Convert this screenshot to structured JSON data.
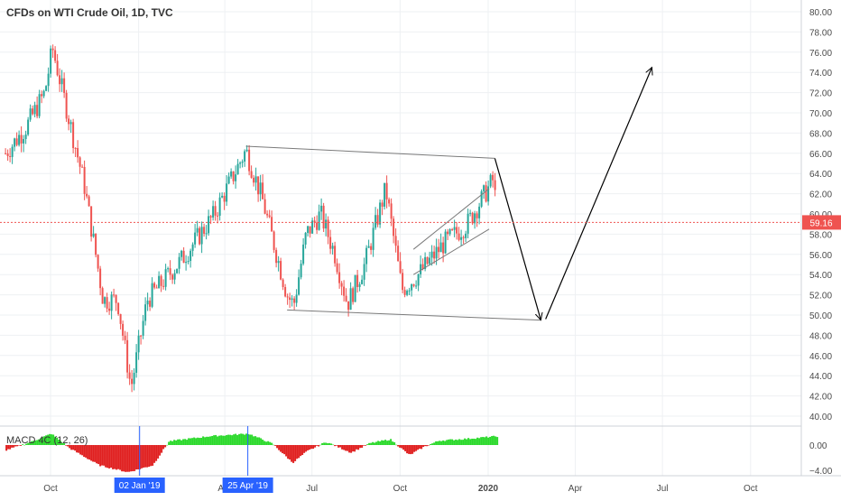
{
  "title": "CFDs on WTI Crude Oil, 1D, TVC",
  "current_price_label": "59.16",
  "colors": {
    "up": "#26a69a",
    "down": "#ef5350",
    "macd_pos": "#2bd92b",
    "macd_neg": "#e02020",
    "price_line": "#ef5350",
    "grid": "#eef0f3",
    "axis_text": "#4a4a4a",
    "marker": "#2962ff",
    "channel": "#7a7a7a",
    "arrow": "#000000"
  },
  "chart_data": {
    "type": "candlestick",
    "y_axis": {
      "min": 40,
      "max": 80,
      "ticks": [
        "80.00",
        "78.00",
        "76.00",
        "74.00",
        "72.00",
        "70.00",
        "68.00",
        "66.00",
        "64.00",
        "62.00",
        "60.00",
        "58.00",
        "56.00",
        "54.00",
        "52.00",
        "50.00",
        "48.00",
        "46.00",
        "44.00",
        "42.00",
        "40.00"
      ]
    },
    "x_axis": {
      "ticks": [
        "Oct",
        "Jan",
        "Apr",
        "Jul",
        "Oct",
        "2020",
        "Apr",
        "Jul",
        "Oct"
      ],
      "highlighted": [
        "02 Jan '19",
        "25 Apr '19"
      ]
    },
    "price_path": [
      [
        "2018-08-15",
        66.0
      ],
      [
        "2018-09-05",
        68.5
      ],
      [
        "2018-09-25",
        72.0
      ],
      [
        "2018-10-03",
        76.4
      ],
      [
        "2018-10-20",
        69.5
      ],
      [
        "2018-11-05",
        63.0
      ],
      [
        "2018-11-25",
        51.5
      ],
      [
        "2018-12-10",
        51.5
      ],
      [
        "2018-12-24",
        42.8
      ],
      [
        "2019-01-10",
        51.5
      ],
      [
        "2019-02-15",
        55.5
      ],
      [
        "2019-03-20",
        59.8
      ],
      [
        "2019-04-23",
        66.3
      ],
      [
        "2019-05-10",
        61.5
      ],
      [
        "2019-06-05",
        52.0
      ],
      [
        "2019-06-12",
        51.0
      ],
      [
        "2019-06-25",
        58.0
      ],
      [
        "2019-07-10",
        60.0
      ],
      [
        "2019-07-25",
        56.0
      ],
      [
        "2019-08-07",
        51.1
      ],
      [
        "2019-08-25",
        55.0
      ],
      [
        "2019-09-16",
        62.5
      ],
      [
        "2019-10-03",
        52.5
      ],
      [
        "2019-10-20",
        54.0
      ],
      [
        "2019-11-15",
        57.0
      ],
      [
        "2019-12-10",
        59.0
      ],
      [
        "2020-01-07",
        63.5
      ],
      [
        "2020-01-10",
        59.16
      ]
    ],
    "current_price": 59.16,
    "drawings": {
      "channel_top": [
        [
          "2019-04-23",
          66.7
        ],
        [
          "2020-01-08",
          65.5
        ]
      ],
      "channel_bottom": [
        [
          "2019-06-05",
          50.5
        ],
        [
          "2020-02-25",
          49.5
        ]
      ],
      "rising_wedge_upper": [
        [
          "2019-10-15",
          56.5
        ],
        [
          "2020-01-02",
          62.5
        ]
      ],
      "rising_wedge_lower": [
        [
          "2019-10-15",
          54.0
        ],
        [
          "2020-01-02",
          58.5
        ]
      ],
      "projection": [
        [
          "2020-01-08",
          65.5
        ],
        [
          "2020-02-25",
          49.5
        ],
        [
          "2020-03-01",
          49.6
        ],
        [
          "2020-06-20",
          74.5
        ]
      ]
    },
    "macd": {
      "label": "MACD 4C (12, 26)",
      "ticks": [
        "0.00",
        "−4.00"
      ],
      "min": -6,
      "max": 3,
      "path": [
        [
          "2018-08-15",
          -0.8
        ],
        [
          "2018-09-10",
          0.5
        ],
        [
          "2018-10-01",
          1.8
        ],
        [
          "2018-10-20",
          -0.5
        ],
        [
          "2018-11-20",
          -3.2
        ],
        [
          "2018-12-20",
          -4.3
        ],
        [
          "2019-01-15",
          -3.2
        ],
        [
          "2019-02-01",
          0.6
        ],
        [
          "2019-03-15",
          1.4
        ],
        [
          "2019-04-25",
          1.8
        ],
        [
          "2019-05-20",
          0.2
        ],
        [
          "2019-06-10",
          -2.8
        ],
        [
          "2019-06-25",
          -1.0
        ],
        [
          "2019-07-15",
          0.5
        ],
        [
          "2019-08-10",
          -1.2
        ],
        [
          "2019-08-30",
          0.3
        ],
        [
          "2019-09-20",
          0.9
        ],
        [
          "2019-10-10",
          -1.6
        ],
        [
          "2019-10-25",
          -0.3
        ],
        [
          "2019-11-10",
          0.7
        ],
        [
          "2019-12-10",
          1.0
        ],
        [
          "2020-01-10",
          1.4
        ]
      ]
    }
  }
}
